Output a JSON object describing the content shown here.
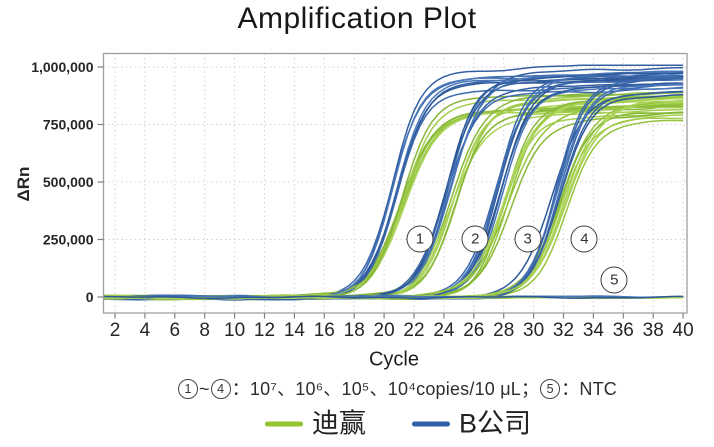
{
  "title": "Amplification Plot",
  "axes": {
    "x_label": "Cycle",
    "y_label": "ΔRn",
    "x_ticks": [
      2,
      4,
      6,
      8,
      10,
      12,
      14,
      16,
      18,
      20,
      22,
      24,
      26,
      28,
      30,
      32,
      34,
      36,
      38,
      40
    ],
    "y_ticks": [
      {
        "value": 0,
        "label": "0"
      },
      {
        "value": 250000,
        "label": "250,000"
      },
      {
        "value": 500000,
        "label": "500,000"
      },
      {
        "value": 750000,
        "label": "750,000"
      },
      {
        "value": 1000000,
        "label": "1,000,000"
      }
    ]
  },
  "caption": "①~④：10⁷、10⁶、10⁵、10⁴copies/10 μL；⑤：NTC",
  "legend": [
    {
      "name": "迪赢",
      "color": "#94c42d"
    },
    {
      "name": "B公司",
      "color": "#2e5fa8"
    }
  ],
  "chart_data": {
    "type": "line",
    "description": "qPCR amplification plot: ΔRn vs Cycle. Four ten-fold dilution clusters of sigmoid curves (replicates from two kits: 迪赢 green, B公司 blue) plus flat NTC lines at ΔRn ≈ 0.",
    "x_axis": {
      "label": "Cycle",
      "min": 2,
      "max": 40,
      "tick_step": 2,
      "plotted_range": [
        1.2,
        40.2
      ]
    },
    "y_axis": {
      "label": "ΔRn",
      "min": 0,
      "max": 1000000,
      "tick_step": 250000,
      "grid": true
    },
    "series": [
      {
        "name": "迪赢",
        "color_main": "#8dbf2e",
        "color_variants": [
          "#8dbf2e",
          "#9cca3e",
          "#7eb22a",
          "#a6d14d"
        ],
        "ct_offset_cycles": 0,
        "plateau_range": [
          785000,
          905000
        ]
      },
      {
        "name": "B公司",
        "color_main": "#2e5fa8",
        "color_variants": [
          "#2e5fa8",
          "#24549c",
          "#3a6cb4",
          "#1c4a91"
        ],
        "ct_offset_cycles": -0.55,
        "plateau_range": [
          890000,
          1005000
        ]
      }
    ],
    "clusters": [
      {
        "annotation": "1",
        "concentration": "10⁷ copies/10 μL",
        "sigmoid_midpoint_cycle": 21.1,
        "replicates_per_series": 7
      },
      {
        "annotation": "2",
        "concentration": "10⁶ copies/10 μL",
        "sigmoid_midpoint_cycle": 24.7,
        "replicates_per_series": 7
      },
      {
        "annotation": "3",
        "concentration": "10⁵ copies/10 μL",
        "sigmoid_midpoint_cycle": 28.3,
        "replicates_per_series": 7
      },
      {
        "annotation": "4",
        "concentration": "10⁴ copies/10 μL",
        "sigmoid_midpoint_cycle": 32.0,
        "replicates_per_series": 7
      }
    ],
    "ntc": {
      "annotation": "5",
      "label": "NTC",
      "value_range": [
        -8000,
        6000
      ],
      "replicates_per_series": 4
    },
    "annotations": [
      {
        "label": "1",
        "cycle": 22.4,
        "drn": 252000
      },
      {
        "label": "2",
        "cycle": 26.1,
        "drn": 252000
      },
      {
        "label": "3",
        "cycle": 29.6,
        "drn": 252000
      },
      {
        "label": "4",
        "cycle": 33.4,
        "drn": 252000
      },
      {
        "label": "5",
        "cycle": 35.4,
        "drn": 74000
      }
    ],
    "grid_color": "#cbcbcb",
    "border_color": "#9f9f9f"
  }
}
